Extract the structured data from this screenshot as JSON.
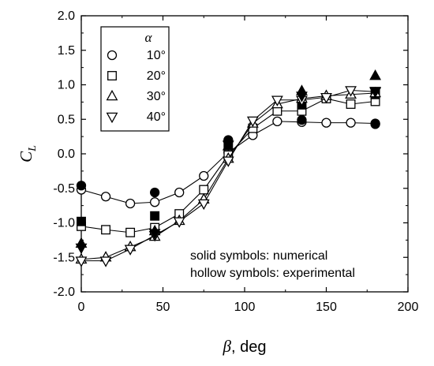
{
  "chart_data": {
    "type": "scatter",
    "xlabel_symbol": "β",
    "xlabel_unit": ", deg",
    "ylabel_symbol": "C",
    "ylabel_sub": "L",
    "xlim": [
      0,
      200
    ],
    "ylim": [
      -2.0,
      2.0
    ],
    "xticks": [
      0,
      50,
      100,
      150,
      200
    ],
    "yticks": [
      -2.0,
      -1.5,
      -1.0,
      -0.5,
      0.0,
      0.5,
      1.0,
      1.5,
      2.0
    ],
    "xtick_labels": [
      "0",
      "50",
      "100",
      "150",
      "200"
    ],
    "ytick_labels": [
      "-2.0",
      "-1.5",
      "-1.0",
      "-0.5",
      "0.0",
      "0.5",
      "1.0",
      "1.5",
      "2.0"
    ],
    "grid": false,
    "legend": {
      "title": "α",
      "placement": "top-left",
      "entries": [
        "10°",
        "20°",
        "30°",
        "40°"
      ]
    },
    "annotations": [
      "solid symbols: numerical",
      "hollow symbols: experimental"
    ],
    "series": [
      {
        "name": "10°",
        "marker": "circle",
        "experimental": {
          "x": [
            0,
            15,
            30,
            45,
            60,
            75,
            90,
            105,
            120,
            135,
            150,
            165,
            180
          ],
          "y": [
            -0.52,
            -0.62,
            -0.72,
            -0.7,
            -0.56,
            -0.32,
            0.02,
            0.27,
            0.47,
            0.46,
            0.45,
            0.45,
            0.44
          ]
        },
        "numerical": {
          "x": [
            0,
            45,
            90,
            135,
            180
          ],
          "y": [
            -0.46,
            -0.56,
            0.2,
            0.49,
            0.43
          ]
        }
      },
      {
        "name": "20°",
        "marker": "square",
        "experimental": {
          "x": [
            0,
            15,
            30,
            45,
            60,
            75,
            90,
            105,
            120,
            135,
            150,
            165,
            180
          ],
          "y": [
            -1.05,
            -1.1,
            -1.14,
            -1.07,
            -0.87,
            -0.52,
            -0.02,
            0.37,
            0.62,
            0.62,
            0.8,
            0.72,
            0.76
          ]
        },
        "numerical": {
          "x": [
            0,
            45,
            90,
            135,
            180
          ],
          "y": [
            -0.98,
            -0.9,
            0.14,
            0.71,
            0.86
          ]
        }
      },
      {
        "name": "30°",
        "marker": "triangle-up",
        "experimental": {
          "x": [
            0,
            15,
            30,
            45,
            60,
            75,
            90,
            105,
            120,
            135,
            150,
            165,
            180
          ],
          "y": [
            -1.53,
            -1.5,
            -1.35,
            -1.2,
            -0.97,
            -0.66,
            -0.07,
            0.44,
            0.72,
            0.8,
            0.84,
            0.86,
            0.88
          ]
        },
        "numerical": {
          "x": [
            0,
            45,
            90,
            135,
            180
          ],
          "y": [
            -1.3,
            -1.12,
            0.11,
            0.91,
            1.13
          ]
        }
      },
      {
        "name": "40°",
        "marker": "triangle-down",
        "experimental": {
          "x": [
            0,
            15,
            30,
            45,
            60,
            75,
            90,
            105,
            120,
            135,
            150,
            165,
            180
          ],
          "y": [
            -1.55,
            -1.55,
            -1.38,
            -1.18,
            -0.98,
            -0.72,
            -0.1,
            0.48,
            0.78,
            0.78,
            0.82,
            0.92,
            0.9
          ]
        },
        "numerical": {
          "x": [
            0,
            45,
            90,
            135,
            180
          ],
          "y": [
            -1.36,
            -1.15,
            0.13,
            0.84,
            0.91
          ]
        }
      }
    ]
  }
}
